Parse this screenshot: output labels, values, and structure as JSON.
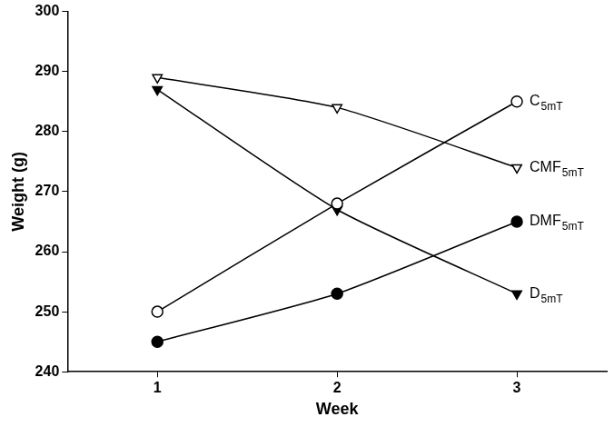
{
  "chart_data": {
    "type": "line",
    "x_label": "Week",
    "y_label": "Weight (g)",
    "x": [
      1,
      2,
      3
    ],
    "series": [
      {
        "name": "CMF5mT",
        "color": "#000000",
        "marker": "triangle-down-open",
        "line_style": "solid",
        "values": [
          289,
          284,
          274
        ]
      },
      {
        "name": "C5mT",
        "color": "#000000",
        "marker": "circle-open",
        "line_style": "solid",
        "values": [
          250,
          268,
          285
        ]
      },
      {
        "name": "DMF5mT",
        "color": "#000000",
        "marker": "circle",
        "line_style": "solid",
        "values": [
          245,
          253,
          265
        ]
      },
      {
        "name": "D5mT",
        "color": "#000000",
        "marker": "triangle-down",
        "line_style": "solid",
        "values": [
          287,
          267,
          253
        ]
      }
    ],
    "xlim": [
      0.5,
      3.5
    ],
    "xticks": [
      1,
      2,
      3
    ],
    "ylim": [
      240,
      300
    ],
    "yticks": [
      240,
      250,
      260,
      270,
      280,
      290,
      300
    ],
    "grid": false
  }
}
